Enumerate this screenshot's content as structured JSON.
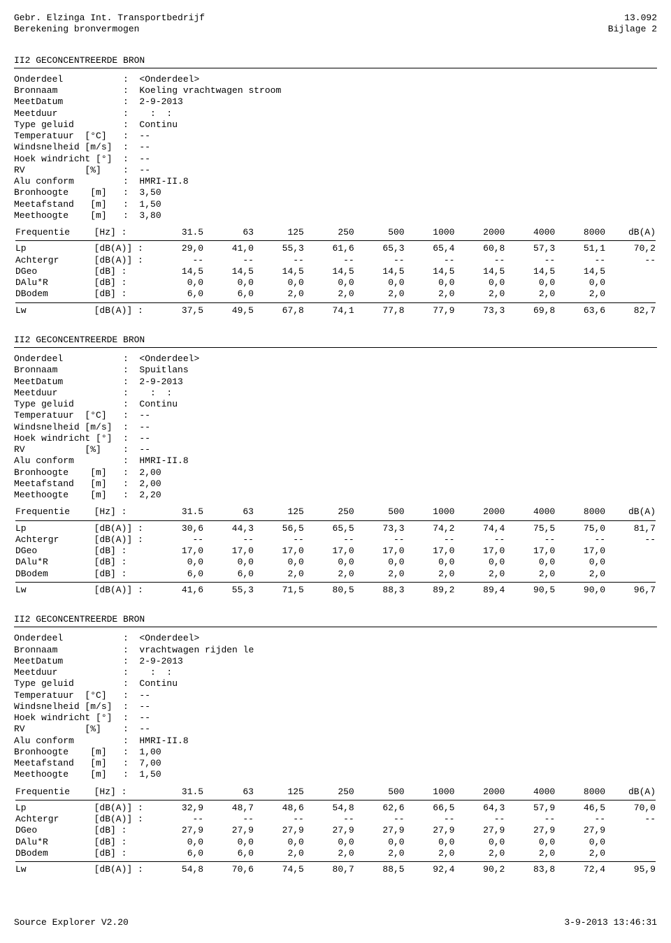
{
  "header": {
    "left_line1": "Gebr. Elzinga Int. Transportbedrijf",
    "left_line2": "Berekening bronvermogen",
    "right_line1": "13.092",
    "right_line2": "Bijlage 2"
  },
  "section_title": "II2 GECONCENTREERDE BRON",
  "freq_header": {
    "label": "Frequentie",
    "unit": "[Hz] :",
    "cols": [
      "31.5",
      "63",
      "125",
      "250",
      "500",
      "1000",
      "2000",
      "4000",
      "8000",
      "dB(A)"
    ]
  },
  "row_labels": {
    "Lp": {
      "label": "Lp",
      "unit": "[dB(A)] :"
    },
    "Achtergr": {
      "label": "Achtergr",
      "unit": "[dB(A)] :"
    },
    "DGeo": {
      "label": "DGeo",
      "unit": "[dB] :"
    },
    "DAluR": {
      "label": "DAlu*R",
      "unit": "[dB] :"
    },
    "DBodem": {
      "label": "DBodem",
      "unit": "[dB] :"
    },
    "Lw": {
      "label": "Lw",
      "unit": "[dB(A)] :"
    }
  },
  "blocks": [
    {
      "meta": {
        "Onderdeel": "<Onderdeel>",
        "Bronnaam": "Koeling vrachtwagen stroom",
        "MeetDatum": "2-9-2013",
        "Meetduur": "  :  :",
        "TypeGeluid": "Continu",
        "Temperatuur": "--",
        "Windsnelheid": "--",
        "HoekWindricht": "--",
        "RV": "--",
        "AluConform": "HMRI-II.8",
        "Bronhoogte": "3,50",
        "Meetafstand": "1,50",
        "Meethoogte": "3,80"
      },
      "rows": {
        "Lp": [
          "29,0",
          "41,0",
          "55,3",
          "61,6",
          "65,3",
          "65,4",
          "60,8",
          "57,3",
          "51,1",
          "70,2"
        ],
        "Achtergr": [
          "--",
          "--",
          "--",
          "--",
          "--",
          "--",
          "--",
          "--",
          "--",
          "--"
        ],
        "DGeo": [
          "14,5",
          "14,5",
          "14,5",
          "14,5",
          "14,5",
          "14,5",
          "14,5",
          "14,5",
          "14,5",
          ""
        ],
        "DAluR": [
          "0,0",
          "0,0",
          "0,0",
          "0,0",
          "0,0",
          "0,0",
          "0,0",
          "0,0",
          "0,0",
          ""
        ],
        "DBodem": [
          "6,0",
          "6,0",
          "2,0",
          "2,0",
          "2,0",
          "2,0",
          "2,0",
          "2,0",
          "2,0",
          ""
        ],
        "Lw": [
          "37,5",
          "49,5",
          "67,8",
          "74,1",
          "77,8",
          "77,9",
          "73,3",
          "69,8",
          "63,6",
          "82,7"
        ]
      }
    },
    {
      "meta": {
        "Onderdeel": "<Onderdeel>",
        "Bronnaam": "Spuitlans",
        "MeetDatum": "2-9-2013",
        "Meetduur": "  :  :",
        "TypeGeluid": "Continu",
        "Temperatuur": "--",
        "Windsnelheid": "--",
        "HoekWindricht": "--",
        "RV": "--",
        "AluConform": "HMRI-II.8",
        "Bronhoogte": "2,00",
        "Meetafstand": "2,00",
        "Meethoogte": "2,20"
      },
      "rows": {
        "Lp": [
          "30,6",
          "44,3",
          "56,5",
          "65,5",
          "73,3",
          "74,2",
          "74,4",
          "75,5",
          "75,0",
          "81,7"
        ],
        "Achtergr": [
          "--",
          "--",
          "--",
          "--",
          "--",
          "--",
          "--",
          "--",
          "--",
          "--"
        ],
        "DGeo": [
          "17,0",
          "17,0",
          "17,0",
          "17,0",
          "17,0",
          "17,0",
          "17,0",
          "17,0",
          "17,0",
          ""
        ],
        "DAluR": [
          "0,0",
          "0,0",
          "0,0",
          "0,0",
          "0,0",
          "0,0",
          "0,0",
          "0,0",
          "0,0",
          ""
        ],
        "DBodem": [
          "6,0",
          "6,0",
          "2,0",
          "2,0",
          "2,0",
          "2,0",
          "2,0",
          "2,0",
          "2,0",
          ""
        ],
        "Lw": [
          "41,6",
          "55,3",
          "71,5",
          "80,5",
          "88,3",
          "89,2",
          "89,4",
          "90,5",
          "90,0",
          "96,7"
        ]
      }
    },
    {
      "meta": {
        "Onderdeel": "<Onderdeel>",
        "Bronnaam": "vrachtwagen rijden le",
        "MeetDatum": "2-9-2013",
        "Meetduur": "  :  :",
        "TypeGeluid": "Continu",
        "Temperatuur": "--",
        "Windsnelheid": "--",
        "HoekWindricht": "--",
        "RV": "--",
        "AluConform": "HMRI-II.8",
        "Bronhoogte": "1,00",
        "Meetafstand": "7,00",
        "Meethoogte": "1,50"
      },
      "rows": {
        "Lp": [
          "32,9",
          "48,7",
          "48,6",
          "54,8",
          "62,6",
          "66,5",
          "64,3",
          "57,9",
          "46,5",
          "70,0"
        ],
        "Achtergr": [
          "--",
          "--",
          "--",
          "--",
          "--",
          "--",
          "--",
          "--",
          "--",
          "--"
        ],
        "DGeo": [
          "27,9",
          "27,9",
          "27,9",
          "27,9",
          "27,9",
          "27,9",
          "27,9",
          "27,9",
          "27,9",
          ""
        ],
        "DAluR": [
          "0,0",
          "0,0",
          "0,0",
          "0,0",
          "0,0",
          "0,0",
          "0,0",
          "0,0",
          "0,0",
          ""
        ],
        "DBodem": [
          "6,0",
          "6,0",
          "2,0",
          "2,0",
          "2,0",
          "2,0",
          "2,0",
          "2,0",
          "2,0",
          ""
        ],
        "Lw": [
          "54,8",
          "70,6",
          "74,5",
          "80,7",
          "88,5",
          "92,4",
          "90,2",
          "83,8",
          "72,4",
          "95,9"
        ]
      }
    }
  ],
  "footer": {
    "left": "Source Explorer V2.20",
    "right": "3-9-2013 13:46:31"
  },
  "meta_field_labels": {
    "Onderdeel": "Onderdeel           :  ",
    "Bronnaam": "Bronnaam            :  ",
    "MeetDatum": "MeetDatum           :  ",
    "Meetduur": "Meetduur            :  ",
    "TypeGeluid": "Type geluid         :  ",
    "Temperatuur": "Temperatuur  [°C]   :  ",
    "Windsnelheid": "Windsnelheid [m/s]  :  ",
    "HoekWindricht": "Hoek windricht [°]  :  ",
    "RV": "RV           [%]    :  ",
    "AluConform": "Alu conform         :  ",
    "Bronhoogte": "Bronhoogte    [m]   :  ",
    "Meetafstand": "Meetafstand   [m]   :  ",
    "Meethoogte": "Meethoogte    [m]   :  "
  }
}
